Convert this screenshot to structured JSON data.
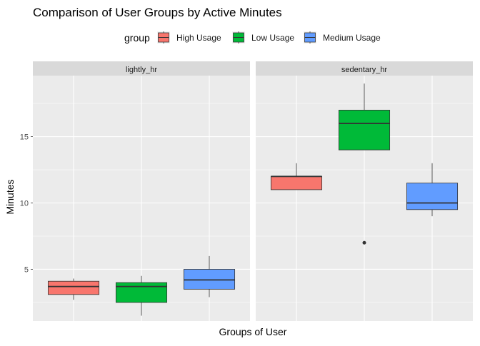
{
  "chart_data": {
    "type": "boxplot",
    "title": "Comparison of User Groups by Active Minutes",
    "xlabel": "Groups of User",
    "ylabel": "Minutes",
    "legend": {
      "title": "group",
      "placement": "top",
      "items": [
        {
          "name": "High Usage",
          "color": "#F8766D"
        },
        {
          "name": "Low Usage",
          "color": "#00BA38"
        },
        {
          "name": "Medium Usage",
          "color": "#619CFF"
        }
      ]
    },
    "y_ticks": [
      5,
      10,
      15
    ],
    "ylim": [
      1.1,
      19.6
    ],
    "grid": true,
    "panels": [
      {
        "label": "lightly_hr",
        "boxes": [
          {
            "group": "High Usage",
            "min": 2.7,
            "q1": 3.1,
            "median": 3.7,
            "q3": 4.1,
            "max": 4.3,
            "outliers": []
          },
          {
            "group": "Low Usage",
            "min": 1.5,
            "q1": 2.5,
            "median": 3.7,
            "q3": 4.0,
            "max": 4.5,
            "outliers": []
          },
          {
            "group": "Medium Usage",
            "min": 2.9,
            "q1": 3.5,
            "median": 4.2,
            "q3": 5.0,
            "max": 6.0,
            "outliers": []
          }
        ]
      },
      {
        "label": "sedentary_hr",
        "boxes": [
          {
            "group": "High Usage",
            "min": 11.0,
            "q1": 11.0,
            "median": 12.0,
            "q3": 12.0,
            "max": 13.0,
            "outliers": []
          },
          {
            "group": "Low Usage",
            "min": 14.0,
            "q1": 14.0,
            "median": 16.0,
            "q3": 17.0,
            "max": 19.0,
            "outliers": [
              7.0
            ]
          },
          {
            "group": "Medium Usage",
            "min": 9.0,
            "q1": 9.5,
            "median": 10.0,
            "q3": 11.5,
            "max": 13.0,
            "outliers": []
          }
        ]
      }
    ]
  }
}
